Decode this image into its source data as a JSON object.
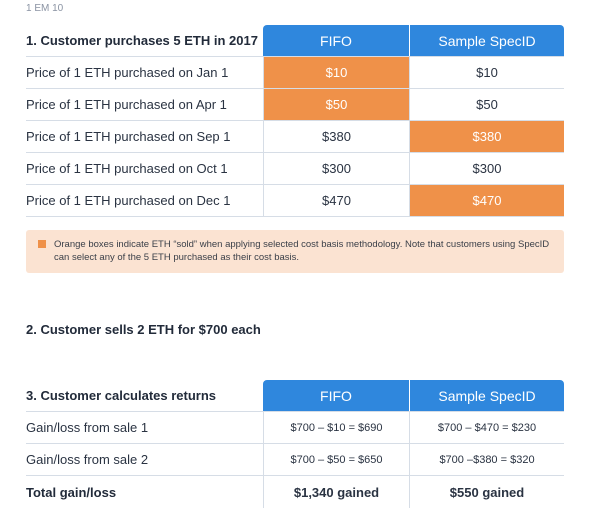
{
  "clipped_text": "1 EM 10",
  "table1": {
    "title": "1. Customer purchases 5 ETH in 2017",
    "col1": "FIFO",
    "col2": "Sample SpecID",
    "rows": [
      {
        "label": "Price of 1 ETH purchased on Jan 1",
        "fifo": "$10",
        "spec": "$10"
      },
      {
        "label": "Price of 1 ETH purchased on Apr 1",
        "fifo": "$50",
        "spec": "$50"
      },
      {
        "label": "Price of 1 ETH purchased on Sep 1",
        "fifo": "$380",
        "spec": "$380"
      },
      {
        "label": "Price of 1 ETH purchased on Oct 1",
        "fifo": "$300",
        "spec": "$300"
      },
      {
        "label": "Price of 1 ETH purchased on Dec 1",
        "fifo": "$470",
        "spec": "$470"
      }
    ]
  },
  "note": {
    "text": "Orange boxes indicate ETH “sold” when applying selected cost basis methodology. Note that customers using SpecID can select any of the 5 ETH purchased as their cost basis.",
    "color": "#ef9149"
  },
  "step2": "2. Customer sells 2 ETH for $700 each",
  "table3": {
    "title": "3. Customer calculates returns",
    "col1": "FIFO",
    "col2": "Sample SpecID",
    "rows": [
      {
        "label": "Gain/loss from sale 1",
        "fifo": "$700 – $10 = $690",
        "spec": "$700 – $470 = $230"
      },
      {
        "label": "Gain/loss from sale 2",
        "fifo": "$700 – $50 = $650",
        "spec": "$700 –$380 = $320"
      },
      {
        "label": "Total gain/loss",
        "fifo": "$1,340 gained",
        "spec": "$550 gained"
      }
    ]
  },
  "colors": {
    "header_blue": "#2f87dd",
    "highlight_orange": "#ef9149",
    "note_bg": "#fbe3d2"
  }
}
